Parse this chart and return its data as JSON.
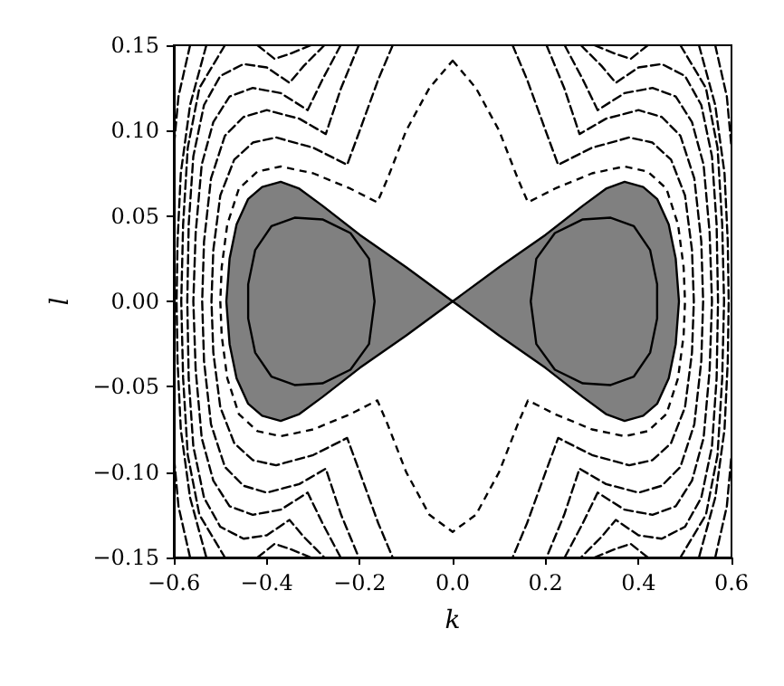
{
  "chart_data": {
    "type": "line",
    "xlabel": "k",
    "ylabel": "l",
    "xlim": [
      -0.6,
      0.6
    ],
    "ylim": [
      -0.15,
      0.15
    ],
    "xticks": [
      {
        "value": -0.6,
        "label": "−0.6"
      },
      {
        "value": -0.4,
        "label": "−0.4"
      },
      {
        "value": -0.2,
        "label": "−0.2"
      },
      {
        "value": 0,
        "label": "0.0"
      },
      {
        "value": 0.2,
        "label": "0.2"
      },
      {
        "value": 0.4,
        "label": "0.4"
      },
      {
        "value": 0.6,
        "label": "0.6"
      }
    ],
    "yticks": [
      {
        "value": -0.15,
        "label": "−0.15"
      },
      {
        "value": -0.1,
        "label": "−0.10"
      },
      {
        "value": -0.05,
        "label": "−0.05"
      },
      {
        "value": 0,
        "label": "0.00"
      },
      {
        "value": 0.05,
        "label": "0.05"
      },
      {
        "value": 0.1,
        "label": "0.10"
      },
      {
        "value": 0.15,
        "label": "0.15"
      }
    ],
    "grid": false,
    "marker": "none",
    "line_style": "dashed",
    "series": [
      {
        "color": "#000000",
        "x": [
          0.129,
          0.16,
          0.2,
          0.227,
          0.3,
          0.38,
          0.43,
          0.47,
          0.5,
          0.515,
          0.519,
          0.515,
          0.5,
          0.47,
          0.43,
          0.38,
          0.3,
          0.227,
          0.2,
          0.16,
          0.129
        ],
        "values": [
          0.15,
          0.13,
          0.1,
          0.08,
          0.09,
          0.096,
          0.093,
          0.083,
          0.062,
          0.03,
          0,
          -0.03,
          -0.062,
          -0.083,
          -0.093,
          -0.096,
          -0.09,
          -0.08,
          -0.1,
          -0.13,
          -0.15
        ]
      },
      {
        "color": "#000000",
        "x": [
          -0.129,
          -0.16,
          -0.2,
          -0.227,
          -0.3,
          -0.38,
          -0.43,
          -0.47,
          -0.5,
          -0.515,
          -0.519,
          -0.515,
          -0.5,
          -0.47,
          -0.43,
          -0.38,
          -0.3,
          -0.227,
          -0.2,
          -0.16,
          -0.129
        ],
        "values": [
          0.15,
          0.13,
          0.1,
          0.08,
          0.09,
          0.096,
          0.093,
          0.083,
          0.062,
          0.03,
          0,
          -0.03,
          -0.062,
          -0.083,
          -0.093,
          -0.096,
          -0.09,
          -0.08,
          -0.1,
          -0.13,
          -0.15
        ]
      },
      {
        "color": "#000000",
        "x": [
          0.202,
          0.24,
          0.273,
          0.33,
          0.4,
          0.45,
          0.49,
          0.52,
          0.535,
          0.539,
          0.535,
          0.52,
          0.49,
          0.45,
          0.4,
          0.33,
          0.273,
          0.24,
          0.202
        ],
        "values": [
          0.15,
          0.125,
          0.098,
          0.107,
          0.112,
          0.108,
          0.097,
          0.072,
          0.035,
          0,
          -0.035,
          -0.072,
          -0.097,
          -0.108,
          -0.112,
          -0.107,
          -0.098,
          -0.125,
          -0.15
        ]
      },
      {
        "color": "#000000",
        "x": [
          -0.202,
          -0.24,
          -0.273,
          -0.33,
          -0.4,
          -0.45,
          -0.49,
          -0.52,
          -0.535,
          -0.539,
          -0.535,
          -0.52,
          -0.49,
          -0.45,
          -0.4,
          -0.33,
          -0.273,
          -0.24,
          -0.202
        ],
        "values": [
          0.15,
          0.125,
          0.098,
          0.107,
          0.112,
          0.108,
          0.097,
          0.072,
          0.035,
          0,
          -0.035,
          -0.072,
          -0.097,
          -0.108,
          -0.112,
          -0.107,
          -0.098,
          -0.125,
          -0.15
        ]
      },
      {
        "color": "#000000",
        "x": [
          0.241,
          0.28,
          0.312,
          0.37,
          0.43,
          0.48,
          0.515,
          0.54,
          0.553,
          0.558,
          0.553,
          0.54,
          0.515,
          0.48,
          0.43,
          0.37,
          0.312,
          0.28,
          0.241
        ],
        "values": [
          0.15,
          0.13,
          0.112,
          0.122,
          0.125,
          0.12,
          0.105,
          0.08,
          0.04,
          0,
          -0.04,
          -0.08,
          -0.105,
          -0.12,
          -0.125,
          -0.122,
          -0.112,
          -0.13,
          -0.15
        ]
      },
      {
        "color": "#000000",
        "x": [
          -0.241,
          -0.28,
          -0.312,
          -0.37,
          -0.43,
          -0.48,
          -0.515,
          -0.54,
          -0.553,
          -0.558,
          -0.553,
          -0.54,
          -0.515,
          -0.48,
          -0.43,
          -0.37,
          -0.312,
          -0.28,
          -0.241
        ],
        "values": [
          0.15,
          0.13,
          0.112,
          0.122,
          0.125,
          0.12,
          0.105,
          0.08,
          0.04,
          0,
          -0.04,
          -0.08,
          -0.105,
          -0.12,
          -0.125,
          -0.122,
          -0.112,
          -0.13,
          -0.15
        ]
      },
      {
        "color": "#000000",
        "x": [
          0.276,
          0.32,
          0.351,
          0.4,
          0.45,
          0.5,
          0.535,
          0.558,
          0.568,
          0.571,
          0.568,
          0.558,
          0.535,
          0.5,
          0.45,
          0.4,
          0.351,
          0.32,
          0.276
        ],
        "values": [
          0.15,
          0.138,
          0.128,
          0.137,
          0.139,
          0.132,
          0.115,
          0.085,
          0.045,
          0,
          -0.045,
          -0.085,
          -0.115,
          -0.132,
          -0.139,
          -0.137,
          -0.128,
          -0.138,
          -0.15
        ]
      },
      {
        "color": "#000000",
        "x": [
          -0.276,
          -0.32,
          -0.351,
          -0.4,
          -0.45,
          -0.5,
          -0.535,
          -0.558,
          -0.568,
          -0.571,
          -0.568,
          -0.558,
          -0.535,
          -0.5,
          -0.45,
          -0.4,
          -0.351,
          -0.32,
          -0.276
        ],
        "values": [
          0.15,
          0.138,
          0.128,
          0.137,
          0.139,
          0.132,
          0.115,
          0.085,
          0.045,
          0,
          -0.045,
          -0.085,
          -0.115,
          -0.132,
          -0.139,
          -0.137,
          -0.128,
          -0.138,
          -0.15
        ]
      },
      {
        "color": "#000000",
        "x": [
          0.305,
          0.35,
          0.383,
          0.42
        ],
        "values": [
          0.15,
          0.145,
          0.142,
          0.15
        ]
      },
      {
        "color": "#000000",
        "x": [
          -0.305,
          -0.35,
          -0.383,
          -0.42
        ],
        "values": [
          0.15,
          0.145,
          0.142,
          0.15
        ]
      },
      {
        "color": "#000000",
        "x": [
          0.305,
          0.35,
          0.383,
          0.42
        ],
        "values": [
          -0.15,
          -0.145,
          -0.142,
          -0.15
        ]
      },
      {
        "color": "#000000",
        "x": [
          -0.305,
          -0.35,
          -0.383,
          -0.42
        ],
        "values": [
          -0.15,
          -0.145,
          -0.142,
          -0.15
        ]
      },
      {
        "color": "#000000",
        "x": [
          0.49,
          0.545,
          0.57,
          0.58,
          0.584,
          0.58,
          0.57,
          0.545,
          0.49
        ],
        "values": [
          0.15,
          0.125,
          0.09,
          0.045,
          0,
          -0.045,
          -0.09,
          -0.125,
          -0.15
        ]
      },
      {
        "color": "#000000",
        "x": [
          -0.49,
          -0.545,
          -0.57,
          -0.58,
          -0.584,
          -0.58,
          -0.57,
          -0.545,
          -0.49
        ],
        "values": [
          0.15,
          0.125,
          0.09,
          0.045,
          0,
          -0.045,
          -0.09,
          -0.125,
          -0.15
        ]
      },
      {
        "color": "#000000",
        "x": [
          0.53,
          0.565,
          0.585,
          0.592,
          0.594,
          0.592,
          0.585,
          0.565,
          0.53
        ],
        "values": [
          0.15,
          0.115,
          0.075,
          0.035,
          0,
          -0.035,
          -0.075,
          -0.115,
          -0.15
        ]
      },
      {
        "color": "#000000",
        "x": [
          -0.53,
          -0.565,
          -0.585,
          -0.592,
          -0.594,
          -0.592,
          -0.585,
          -0.565,
          -0.53
        ],
        "values": [
          0.15,
          0.115,
          0.075,
          0.035,
          0,
          -0.035,
          -0.075,
          -0.115,
          -0.15
        ]
      },
      {
        "color": "#000000",
        "x": [
          0.565,
          0.59,
          0.6
        ],
        "values": [
          0.15,
          0.12,
          0.09
        ]
      },
      {
        "color": "#000000",
        "x": [
          -0.565,
          -0.59,
          -0.6
        ],
        "values": [
          0.15,
          0.12,
          0.09
        ]
      },
      {
        "color": "#000000",
        "x": [
          0.565,
          0.59,
          0.6
        ],
        "values": [
          -0.15,
          -0.12,
          -0.09
        ]
      },
      {
        "color": "#000000",
        "x": [
          -0.565,
          -0.59,
          -0.6
        ],
        "values": [
          -0.15,
          -0.12,
          -0.09
        ]
      },
      {
        "type": "area",
        "color": "#ffffff",
        "line_style": "dashed",
        "x": [
          0,
          0.05,
          0.1,
          0.14,
          0.162,
          0.22,
          0.3,
          0.37,
          0.42,
          0.46,
          0.485,
          0.497,
          0.5,
          0.497,
          0.485,
          0.46,
          0.42,
          0.37,
          0.3,
          0.22,
          0.162,
          0.14,
          0.1,
          0.05,
          0,
          -0.05,
          -0.1,
          -0.14,
          -0.162,
          -0.22,
          -0.3,
          -0.37,
          -0.42,
          -0.46,
          -0.485,
          -0.497,
          -0.5,
          -0.497,
          -0.485,
          -0.46,
          -0.42,
          -0.37,
          -0.3,
          -0.22,
          -0.162,
          -0.14,
          -0.1,
          -0.05,
          0
        ],
        "values": [
          0.141,
          0.125,
          0.1,
          0.072,
          0.058,
          0.066,
          0.075,
          0.079,
          0.076,
          0.066,
          0.045,
          0.02,
          0,
          -0.02,
          -0.045,
          -0.066,
          -0.076,
          -0.079,
          -0.075,
          -0.066,
          -0.058,
          -0.072,
          -0.1,
          -0.125,
          -0.135,
          -0.125,
          -0.1,
          -0.072,
          -0.058,
          -0.066,
          -0.075,
          -0.079,
          -0.076,
          -0.066,
          -0.045,
          -0.02,
          0,
          0.02,
          0.045,
          0.066,
          0.076,
          0.079,
          0.075,
          0.066,
          0.058,
          0.072,
          0.1,
          0.125,
          0.141
        ]
      },
      {
        "type": "area",
        "color": "#808080",
        "line_style": "solid",
        "x": [
          0,
          0.1,
          0.2,
          0.28,
          0.33,
          0.37,
          0.41,
          0.44,
          0.465,
          0.48,
          0.487,
          0.48,
          0.465,
          0.44,
          0.41,
          0.37,
          0.33,
          0.28,
          0.2,
          0.1,
          0
        ],
        "values": [
          0,
          0.02,
          0.039,
          0.056,
          0.066,
          0.07,
          0.067,
          0.06,
          0.045,
          0.025,
          0,
          -0.025,
          -0.045,
          -0.06,
          -0.067,
          -0.07,
          -0.066,
          -0.056,
          -0.039,
          -0.02,
          0
        ]
      },
      {
        "type": "area",
        "color": "#808080",
        "line_style": "solid",
        "x": [
          0,
          -0.1,
          -0.2,
          -0.28,
          -0.33,
          -0.37,
          -0.41,
          -0.44,
          -0.465,
          -0.48,
          -0.487,
          -0.48,
          -0.465,
          -0.44,
          -0.41,
          -0.37,
          -0.33,
          -0.28,
          -0.2,
          -0.1,
          0
        ],
        "values": [
          0,
          0.02,
          0.039,
          0.056,
          0.066,
          0.07,
          0.067,
          0.06,
          0.045,
          0.025,
          0,
          -0.025,
          -0.045,
          -0.06,
          -0.067,
          -0.07,
          -0.066,
          -0.056,
          -0.039,
          -0.02,
          0
        ]
      },
      {
        "type": "area",
        "color": "#808080",
        "line_style": "solid",
        "x": [
          0.168,
          0.18,
          0.22,
          0.28,
          0.34,
          0.39,
          0.425,
          0.44,
          0.44,
          0.425,
          0.39,
          0.34,
          0.28,
          0.22,
          0.18,
          0.168
        ],
        "values": [
          0,
          0.025,
          0.04,
          0.048,
          0.049,
          0.044,
          0.03,
          0.01,
          -0.01,
          -0.03,
          -0.044,
          -0.049,
          -0.048,
          -0.04,
          -0.025,
          0
        ]
      },
      {
        "type": "area",
        "color": "#808080",
        "line_style": "solid",
        "x": [
          -0.168,
          -0.18,
          -0.22,
          -0.28,
          -0.34,
          -0.39,
          -0.425,
          -0.44,
          -0.44,
          -0.425,
          -0.39,
          -0.34,
          -0.28,
          -0.22,
          -0.18,
          -0.168
        ],
        "values": [
          0,
          0.025,
          0.04,
          0.048,
          0.049,
          0.044,
          0.03,
          0.01,
          -0.01,
          -0.03,
          -0.044,
          -0.049,
          -0.048,
          -0.04,
          -0.025,
          0
        ]
      }
    ]
  }
}
